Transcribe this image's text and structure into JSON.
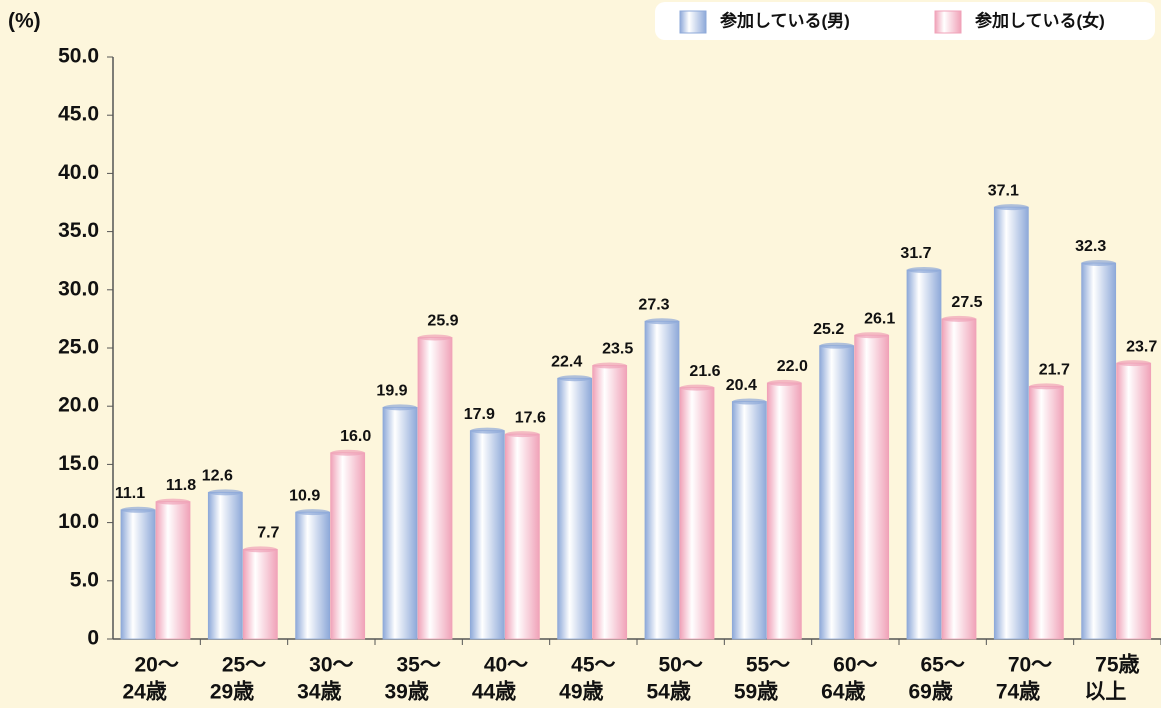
{
  "chart_data": {
    "type": "bar",
    "y_label": "(%)",
    "categories": [
      [
        "20〜",
        "24歳"
      ],
      [
        "25〜",
        "29歳"
      ],
      [
        "30〜",
        "34歳"
      ],
      [
        "35〜",
        "39歳"
      ],
      [
        "40〜",
        "44歳"
      ],
      [
        "45〜",
        "49歳"
      ],
      [
        "50〜",
        "54歳"
      ],
      [
        "55〜",
        "59歳"
      ],
      [
        "60〜",
        "64歳"
      ],
      [
        "65〜",
        "69歳"
      ],
      [
        "70〜",
        "74歳"
      ],
      [
        "75歳",
        "以上"
      ]
    ],
    "series": [
      {
        "name": "参加している(男)",
        "color": "#8ea9d9",
        "values": [
          11.1,
          12.6,
          10.9,
          19.9,
          17.9,
          22.4,
          27.3,
          20.4,
          25.2,
          31.7,
          37.1,
          32.3
        ],
        "value_labels": [
          "11.1",
          "12.6",
          "10.9",
          "19.9",
          "17.9",
          "22.4",
          "27.3",
          "20.4",
          "25.2",
          "31.7",
          "37.1",
          "32.3"
        ]
      },
      {
        "name": "参加している(女)",
        "color": "#f0a2b8",
        "values": [
          11.8,
          7.7,
          16.0,
          25.9,
          17.6,
          23.5,
          21.6,
          22.0,
          26.1,
          27.5,
          21.7,
          23.7
        ],
        "value_labels": [
          "11.8",
          "7.7",
          "16.0",
          "25.9",
          "17.6",
          "23.5",
          "21.6",
          "22.0",
          "26.1",
          "27.5",
          "21.7",
          "23.7"
        ]
      }
    ],
    "ylim": [
      0,
      50
    ],
    "yticks": [
      0,
      {
        "value": 5,
        "label": "5.0"
      },
      {
        "value": 10,
        "label": "10.0"
      },
      {
        "value": 15,
        "label": "15.0"
      },
      {
        "value": 20,
        "label": "20.0"
      },
      {
        "value": 25,
        "label": "25.0"
      },
      {
        "value": 30,
        "label": "30.0"
      },
      {
        "value": 35,
        "label": "35.0"
      },
      {
        "value": 40,
        "label": "40.0"
      },
      {
        "value": 45,
        "label": "45.0"
      },
      {
        "value": 50,
        "label": "50.0"
      }
    ],
    "legend": "top-right"
  }
}
